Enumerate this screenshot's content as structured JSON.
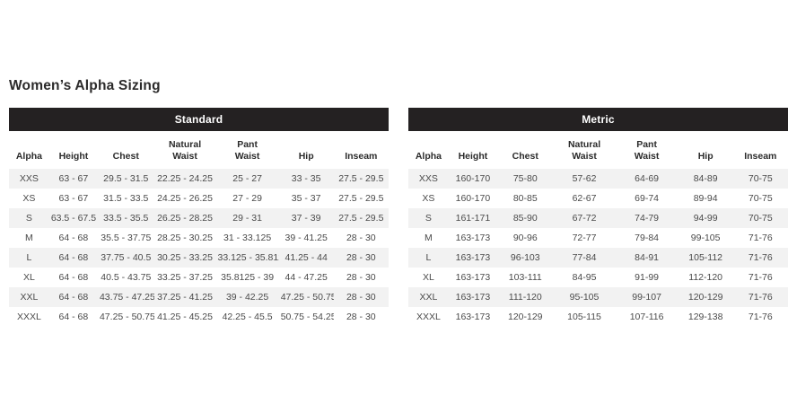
{
  "page": {
    "title": "Women’s Alpha Sizing"
  },
  "colors": {
    "banner_bg": "#242122",
    "banner_text": "#ffffff",
    "row_stripe": "#f2f2f2",
    "data_text": "#4a4a4a",
    "heading_text": "#2b2a2a"
  },
  "chart_data": [
    {
      "type": "table",
      "title": "Standard",
      "columns": [
        "Alpha",
        "Height",
        "Chest",
        "Natural\nWaist",
        "Pant\nWaist",
        "Hip",
        "Inseam"
      ],
      "rows": [
        [
          "XXS",
          "63 - 67",
          "29.5 - 31.5",
          "22.25 - 24.25",
          "25 - 27",
          "33 - 35",
          "27.5 - 29.5"
        ],
        [
          "XS",
          "63 - 67",
          "31.5 - 33.5",
          "24.25 - 26.25",
          "27 - 29",
          "35 - 37",
          "27.5 - 29.5"
        ],
        [
          "S",
          "63.5 - 67.5",
          "33.5 - 35.5",
          "26.25 - 28.25",
          "29 - 31",
          "37 - 39",
          "27.5 - 29.5"
        ],
        [
          "M",
          "64 - 68",
          "35.5 - 37.75",
          "28.25 - 30.25",
          "31 - 33.125",
          "39 - 41.25",
          "28 - 30"
        ],
        [
          "L",
          "64 - 68",
          "37.75 - 40.5",
          "30.25 - 33.25",
          "33.125 - 35.8125",
          "41.25 - 44",
          "28 - 30"
        ],
        [
          "XL",
          "64 - 68",
          "40.5 - 43.75",
          "33.25 - 37.25",
          "35.8125 - 39",
          "44 - 47.25",
          "28 - 30"
        ],
        [
          "XXL",
          "64 - 68",
          "43.75 - 47.25",
          "37.25 - 41.25",
          "39 - 42.25",
          "47.25 - 50.75",
          "28 - 30"
        ],
        [
          "XXXL",
          "64 - 68",
          "47.25 - 50.75",
          "41.25 - 45.25",
          "42.25 - 45.5",
          "50.75 - 54.25",
          "28 - 30"
        ]
      ]
    },
    {
      "type": "table",
      "title": "Metric",
      "columns": [
        "Alpha",
        "Height",
        "Chest",
        "Natural\nWaist",
        "Pant\nWaist",
        "Hip",
        "Inseam"
      ],
      "rows": [
        [
          "XXS",
          "160-170",
          "75-80",
          "57-62",
          "64-69",
          "84-89",
          "70-75"
        ],
        [
          "XS",
          "160-170",
          "80-85",
          "62-67",
          "69-74",
          "89-94",
          "70-75"
        ],
        [
          "S",
          "161-171",
          "85-90",
          "67-72",
          "74-79",
          "94-99",
          "70-75"
        ],
        [
          "M",
          "163-173",
          "90-96",
          "72-77",
          "79-84",
          "99-105",
          "71-76"
        ],
        [
          "L",
          "163-173",
          "96-103",
          "77-84",
          "84-91",
          "105-112",
          "71-76"
        ],
        [
          "XL",
          "163-173",
          "103-111",
          "84-95",
          "91-99",
          "112-120",
          "71-76"
        ],
        [
          "XXL",
          "163-173",
          "111-120",
          "95-105",
          "99-107",
          "120-129",
          "71-76"
        ],
        [
          "XXXL",
          "163-173",
          "120-129",
          "105-115",
          "107-116",
          "129-138",
          "71-76"
        ]
      ]
    }
  ]
}
